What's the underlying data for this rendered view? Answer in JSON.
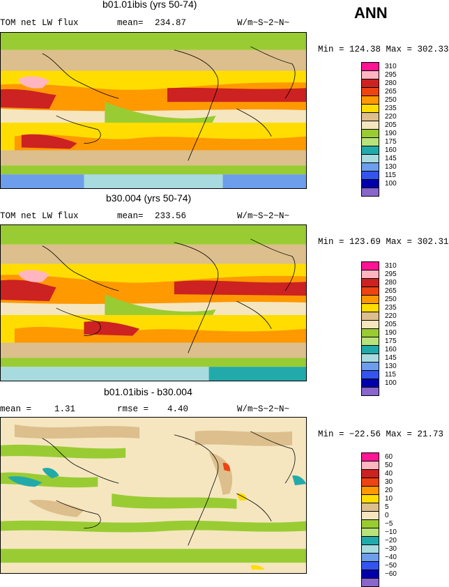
{
  "season_label": "ANN",
  "panels": [
    {
      "title": "b01.01ibis (yrs 50-74)",
      "left_label": "TOM net LW flux",
      "stat_label": "mean=",
      "stat_value": "234.87",
      "units": "W/m~S~2~N~",
      "range_text": "Min = 124.38 Max = 302.33",
      "legend_values": [
        "310",
        "295",
        "280",
        "265",
        "250",
        "235",
        "220",
        "205",
        "190",
        "175",
        "160",
        "145",
        "130",
        "115",
        "100"
      ]
    },
    {
      "title": "b30.004 (yrs 50-74)",
      "left_label": "TOM net LW flux",
      "stat_label": "mean=",
      "stat_value": "233.56",
      "units": "W/m~S~2~N~",
      "range_text": "Min = 123.69 Max = 302.31",
      "legend_values": [
        "310",
        "295",
        "280",
        "265",
        "250",
        "235",
        "220",
        "205",
        "190",
        "175",
        "160",
        "145",
        "130",
        "115",
        "100"
      ]
    },
    {
      "title": "b01.01ibis - b30.004",
      "left_label": "mean =",
      "left_value": "1.31",
      "stat_label": "rmse =",
      "stat_value": "4.40",
      "units": "W/m~S~2~N~",
      "range_text": "Min = −22.56 Max =  21.73",
      "legend_values": [
        "60",
        "50",
        "40",
        "30",
        "20",
        "10",
        "5",
        "0",
        "−5",
        "−10",
        "−20",
        "−30",
        "−40",
        "−50",
        "−60"
      ]
    }
  ],
  "legend_colors": [
    "#ff1493",
    "#ffb6c1",
    "#cc2222",
    "#ee4411",
    "#ff9900",
    "#ffdd00",
    "#dcbf8c",
    "#f5e6c0",
    "#99cc33",
    "#b8e27a",
    "#22aaaa",
    "#a8dbe0",
    "#6d9eeb",
    "#3355ee",
    "#0000aa",
    "#8866cc"
  ],
  "map_colors": {
    "pink": "#ff1493",
    "lightpink": "#ffb6c1",
    "red": "#cc2222",
    "orange_red": "#ee4411",
    "orange": "#ff9900",
    "yellow": "#ffdd00",
    "tan": "#dcbf8c",
    "cream": "#f5e6c0",
    "green": "#99cc33",
    "lightgreen": "#b8e27a",
    "teal": "#22aaaa",
    "lightblue": "#a8dbe0",
    "blue": "#6d9eeb",
    "darkblue": "#3355ee"
  }
}
